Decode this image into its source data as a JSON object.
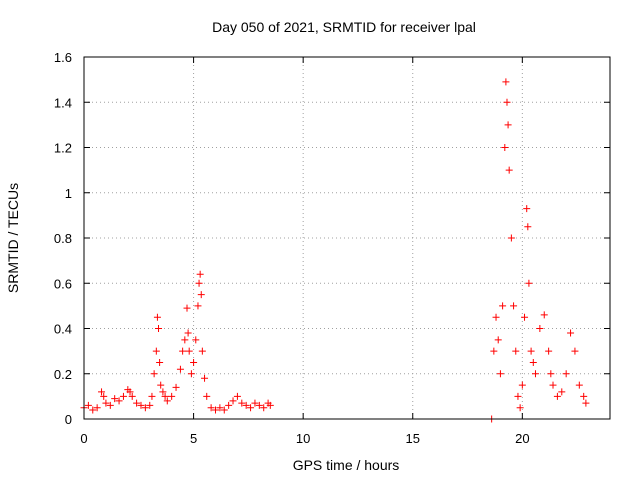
{
  "chart_data": {
    "type": "scatter",
    "title": "Day 050 of 2021, SRMTID for receiver lpal",
    "xlabel": "GPS time / hours",
    "ylabel": "SRMTID / TECUs",
    "xlim": [
      0,
      24
    ],
    "ylim": [
      0,
      1.6
    ],
    "xticks": [
      0,
      5,
      10,
      15,
      20
    ],
    "xtick_labels": [
      "0",
      "5",
      "10",
      "15",
      "20"
    ],
    "yticks": [
      0,
      0.2,
      0.4,
      0.6,
      0.8,
      1.0,
      1.2,
      1.4,
      1.6
    ],
    "ytick_labels": [
      "0",
      "0.2",
      "0.4",
      "0.6",
      "0.8",
      "1",
      "1.2",
      "1.4",
      "1.6"
    ],
    "grid": true,
    "marker": "plus",
    "marker_color": "#ff0000",
    "series": [
      {
        "name": "SRMTID",
        "x": [
          0.0,
          0.2,
          0.4,
          0.6,
          0.8,
          0.9,
          1.0,
          1.2,
          1.4,
          1.6,
          1.8,
          2.0,
          2.1,
          2.2,
          2.4,
          2.6,
          2.8,
          3.0,
          3.1,
          3.2,
          3.3,
          3.35,
          3.4,
          3.45,
          3.5,
          3.6,
          3.7,
          3.8,
          4.0,
          4.2,
          4.4,
          4.5,
          4.6,
          4.7,
          4.75,
          4.8,
          4.9,
          5.0,
          5.1,
          5.2,
          5.25,
          5.3,
          5.35,
          5.4,
          5.5,
          5.6,
          5.8,
          6.0,
          6.2,
          6.4,
          6.6,
          6.8,
          7.0,
          7.2,
          7.4,
          7.6,
          7.8,
          8.0,
          8.2,
          8.4,
          8.5,
          18.6,
          18.7,
          18.8,
          18.9,
          19.0,
          19.1,
          19.2,
          19.25,
          19.3,
          19.35,
          19.4,
          19.5,
          19.6,
          19.7,
          19.8,
          19.9,
          20.0,
          20.1,
          20.2,
          20.25,
          20.3,
          20.4,
          20.5,
          20.6,
          20.8,
          21.0,
          21.2,
          21.3,
          21.4,
          21.6,
          21.8,
          22.0,
          22.2,
          22.4,
          22.6,
          22.8,
          22.9
        ],
        "y": [
          0.05,
          0.06,
          0.04,
          0.05,
          0.12,
          0.1,
          0.07,
          0.06,
          0.09,
          0.08,
          0.1,
          0.13,
          0.12,
          0.1,
          0.07,
          0.06,
          0.05,
          0.06,
          0.1,
          0.2,
          0.3,
          0.45,
          0.4,
          0.25,
          0.15,
          0.12,
          0.1,
          0.08,
          0.1,
          0.14,
          0.22,
          0.3,
          0.35,
          0.49,
          0.38,
          0.3,
          0.2,
          0.25,
          0.35,
          0.5,
          0.6,
          0.64,
          0.55,
          0.3,
          0.18,
          0.1,
          0.05,
          0.04,
          0.05,
          0.04,
          0.06,
          0.08,
          0.1,
          0.07,
          0.06,
          0.05,
          0.07,
          0.06,
          0.05,
          0.07,
          0.06,
          0.0,
          0.3,
          0.45,
          0.35,
          0.2,
          0.5,
          1.2,
          1.49,
          1.4,
          1.3,
          1.1,
          0.8,
          0.5,
          0.3,
          0.1,
          0.05,
          0.15,
          0.45,
          0.93,
          0.85,
          0.6,
          0.3,
          0.25,
          0.2,
          0.4,
          0.46,
          0.3,
          0.2,
          0.15,
          0.1,
          0.12,
          0.2,
          0.38,
          0.3,
          0.15,
          0.1,
          0.07
        ]
      }
    ]
  }
}
